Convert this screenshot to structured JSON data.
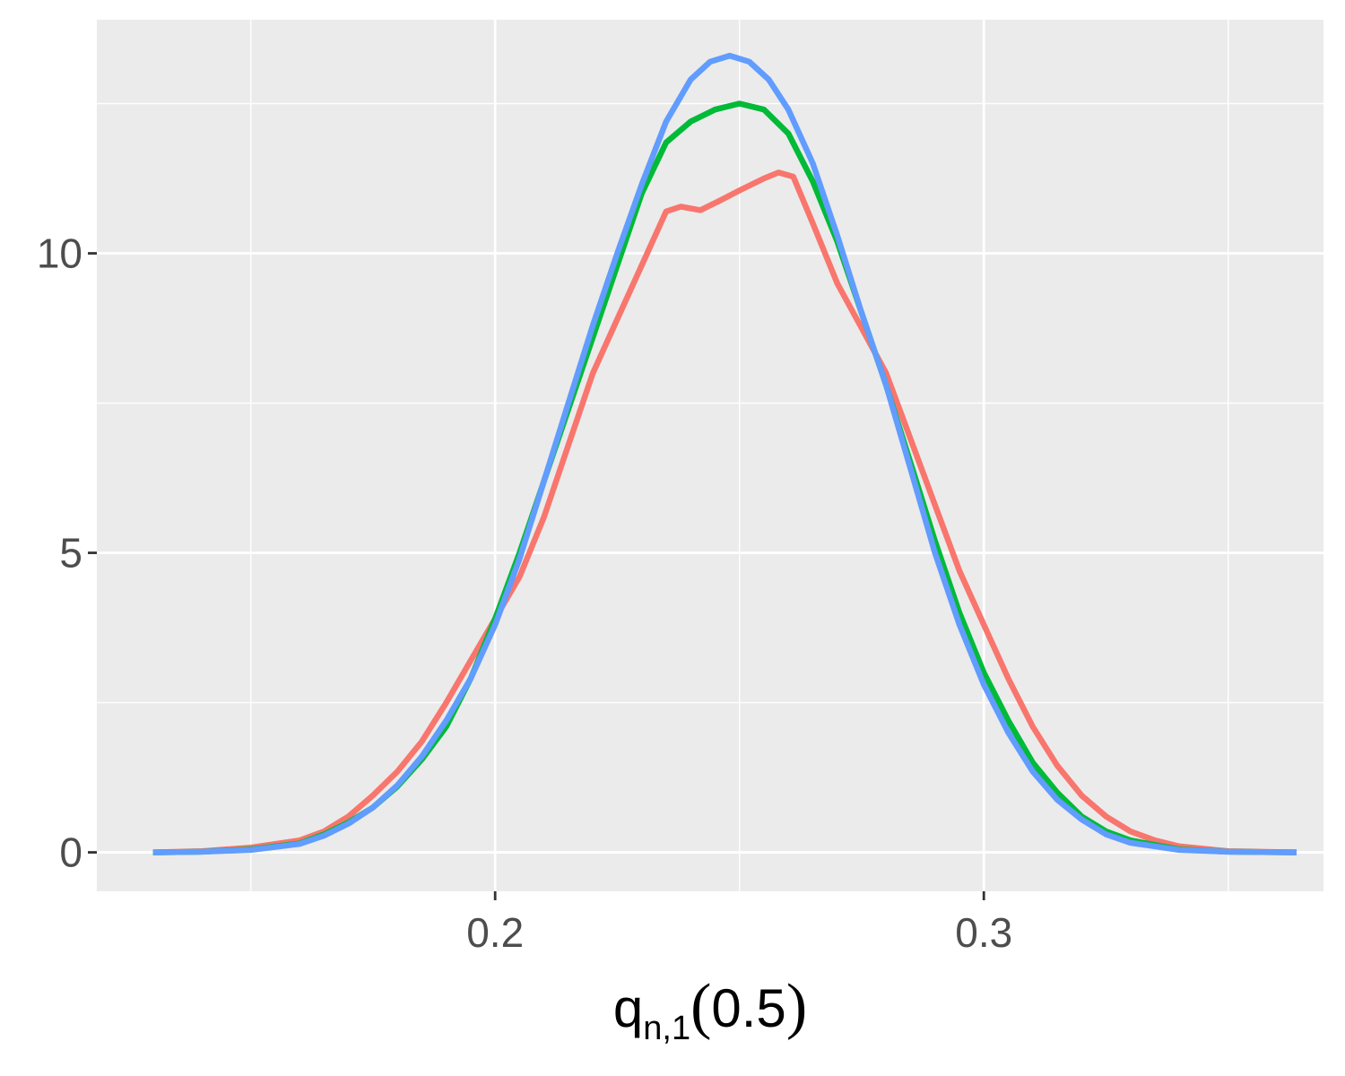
{
  "chart_data": {
    "type": "line",
    "title": "",
    "xlabel": {
      "base": "q",
      "subscript": "n,1",
      "open_paren": "(",
      "argument": "0.5",
      "close_paren": ")"
    },
    "ylabel": "",
    "xlim": [
      0.1185,
      0.3695
    ],
    "ylim": [
      -0.65,
      13.9
    ],
    "x_ticks": [
      {
        "value": 0.2,
        "label": "0.2"
      },
      {
        "value": 0.3,
        "label": "0.3"
      }
    ],
    "y_ticks": [
      {
        "value": 0,
        "label": "0"
      },
      {
        "value": 5,
        "label": "5"
      },
      {
        "value": 10,
        "label": "10"
      }
    ],
    "x_minor_grid": [
      0.15,
      0.25,
      0.35
    ],
    "y_minor_grid": [
      2.5,
      7.5,
      12.5
    ],
    "grid": true,
    "legend": "none",
    "colors": {
      "panel_background": "#EBEBEB",
      "grid": "#FFFFFF",
      "tick_text": "#4D4D4D",
      "axis_ticks": "#333333"
    },
    "series": [
      {
        "color": "#F8766D",
        "points": [
          [
            0.13,
            0.0
          ],
          [
            0.14,
            0.02
          ],
          [
            0.15,
            0.08
          ],
          [
            0.16,
            0.2
          ],
          [
            0.165,
            0.35
          ],
          [
            0.17,
            0.6
          ],
          [
            0.175,
            0.95
          ],
          [
            0.18,
            1.35
          ],
          [
            0.185,
            1.85
          ],
          [
            0.19,
            2.5
          ],
          [
            0.195,
            3.2
          ],
          [
            0.2,
            3.9
          ],
          [
            0.205,
            4.6
          ],
          [
            0.21,
            5.6
          ],
          [
            0.215,
            6.8
          ],
          [
            0.22,
            8.0
          ],
          [
            0.225,
            8.9
          ],
          [
            0.23,
            9.8
          ],
          [
            0.235,
            10.7
          ],
          [
            0.238,
            10.78
          ],
          [
            0.242,
            10.72
          ],
          [
            0.246,
            10.88
          ],
          [
            0.25,
            11.05
          ],
          [
            0.255,
            11.25
          ],
          [
            0.258,
            11.35
          ],
          [
            0.261,
            11.28
          ],
          [
            0.265,
            10.5
          ],
          [
            0.27,
            9.5
          ],
          [
            0.275,
            8.75
          ],
          [
            0.28,
            8.0
          ],
          [
            0.285,
            6.9
          ],
          [
            0.29,
            5.8
          ],
          [
            0.295,
            4.7
          ],
          [
            0.3,
            3.8
          ],
          [
            0.305,
            2.9
          ],
          [
            0.31,
            2.1
          ],
          [
            0.315,
            1.45
          ],
          [
            0.32,
            0.95
          ],
          [
            0.325,
            0.6
          ],
          [
            0.33,
            0.35
          ],
          [
            0.335,
            0.2
          ],
          [
            0.34,
            0.1
          ],
          [
            0.35,
            0.02
          ],
          [
            0.364,
            0.0
          ]
        ]
      },
      {
        "color": "#00BA38",
        "points": [
          [
            0.13,
            0.0
          ],
          [
            0.14,
            0.01
          ],
          [
            0.15,
            0.05
          ],
          [
            0.16,
            0.15
          ],
          [
            0.165,
            0.3
          ],
          [
            0.17,
            0.5
          ],
          [
            0.175,
            0.75
          ],
          [
            0.18,
            1.1
          ],
          [
            0.185,
            1.55
          ],
          [
            0.19,
            2.1
          ],
          [
            0.195,
            2.9
          ],
          [
            0.2,
            3.9
          ],
          [
            0.205,
            5.0
          ],
          [
            0.21,
            6.2
          ],
          [
            0.215,
            7.4
          ],
          [
            0.22,
            8.6
          ],
          [
            0.225,
            9.8
          ],
          [
            0.23,
            11.0
          ],
          [
            0.235,
            11.85
          ],
          [
            0.24,
            12.2
          ],
          [
            0.245,
            12.4
          ],
          [
            0.25,
            12.5
          ],
          [
            0.255,
            12.4
          ],
          [
            0.26,
            12.0
          ],
          [
            0.265,
            11.2
          ],
          [
            0.27,
            10.2
          ],
          [
            0.275,
            9.0
          ],
          [
            0.28,
            7.8
          ],
          [
            0.285,
            6.5
          ],
          [
            0.29,
            5.2
          ],
          [
            0.295,
            4.0
          ],
          [
            0.3,
            3.0
          ],
          [
            0.305,
            2.2
          ],
          [
            0.31,
            1.5
          ],
          [
            0.315,
            1.0
          ],
          [
            0.32,
            0.6
          ],
          [
            0.325,
            0.35
          ],
          [
            0.33,
            0.2
          ],
          [
            0.34,
            0.05
          ],
          [
            0.35,
            0.01
          ],
          [
            0.364,
            0.0
          ]
        ]
      },
      {
        "color": "#619CFF",
        "points": [
          [
            0.13,
            0.0
          ],
          [
            0.14,
            0.01
          ],
          [
            0.15,
            0.04
          ],
          [
            0.16,
            0.14
          ],
          [
            0.165,
            0.28
          ],
          [
            0.17,
            0.48
          ],
          [
            0.175,
            0.75
          ],
          [
            0.18,
            1.12
          ],
          [
            0.185,
            1.6
          ],
          [
            0.19,
            2.2
          ],
          [
            0.195,
            2.9
          ],
          [
            0.2,
            3.8
          ],
          [
            0.205,
            4.9
          ],
          [
            0.21,
            6.2
          ],
          [
            0.215,
            7.5
          ],
          [
            0.22,
            8.8
          ],
          [
            0.225,
            10.0
          ],
          [
            0.23,
            11.15
          ],
          [
            0.235,
            12.2
          ],
          [
            0.24,
            12.9
          ],
          [
            0.244,
            13.2
          ],
          [
            0.248,
            13.3
          ],
          [
            0.252,
            13.2
          ],
          [
            0.256,
            12.9
          ],
          [
            0.26,
            12.4
          ],
          [
            0.265,
            11.5
          ],
          [
            0.27,
            10.3
          ],
          [
            0.275,
            9.0
          ],
          [
            0.28,
            7.8
          ],
          [
            0.285,
            6.4
          ],
          [
            0.29,
            5.0
          ],
          [
            0.295,
            3.8
          ],
          [
            0.3,
            2.8
          ],
          [
            0.305,
            2.0
          ],
          [
            0.31,
            1.35
          ],
          [
            0.315,
            0.88
          ],
          [
            0.32,
            0.55
          ],
          [
            0.325,
            0.3
          ],
          [
            0.33,
            0.16
          ],
          [
            0.34,
            0.04
          ],
          [
            0.35,
            0.01
          ],
          [
            0.364,
            0.0
          ]
        ]
      }
    ]
  }
}
